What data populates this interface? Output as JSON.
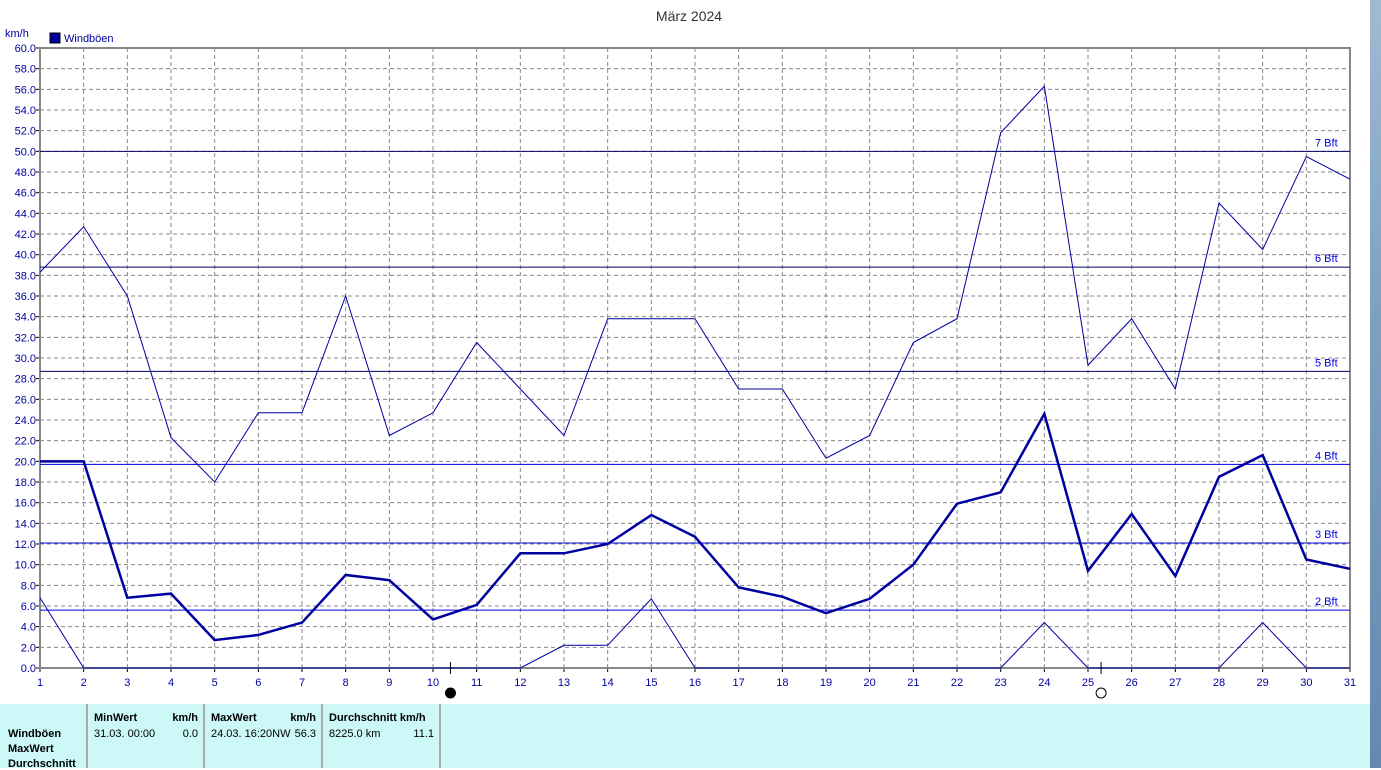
{
  "chart_data": {
    "type": "line",
    "title": "März 2024",
    "ylabel": "km/h",
    "ylim": [
      0,
      60
    ],
    "yticks": [
      "0.0",
      "2.0",
      "4.0",
      "6.0",
      "8.0",
      "10.0",
      "12.0",
      "14.0",
      "16.0",
      "18.0",
      "20.0",
      "22.0",
      "24.0",
      "26.0",
      "28.0",
      "30.0",
      "32.0",
      "34.0",
      "36.0",
      "38.0",
      "40.0",
      "42.0",
      "44.0",
      "46.0",
      "48.0",
      "50.0",
      "52.0",
      "54.0",
      "56.0",
      "58.0",
      "60.0"
    ],
    "x": [
      1,
      2,
      3,
      4,
      5,
      6,
      7,
      8,
      9,
      10,
      11,
      12,
      13,
      14,
      15,
      16,
      17,
      18,
      19,
      20,
      21,
      22,
      23,
      24,
      25,
      26,
      27,
      28,
      29,
      30,
      31
    ],
    "legend": "Windböen",
    "legend_color": "#0000a0",
    "grid": true,
    "series": [
      {
        "role": "max",
        "values": [
          38.3,
          42.7,
          36,
          22.3,
          18,
          24.7,
          24.7,
          36,
          22.5,
          24.7,
          31.5,
          27,
          22.5,
          33.8,
          33.8,
          33.8,
          27,
          27,
          20.3,
          22.5,
          31.5,
          33.8,
          51.8,
          56.3,
          29.3,
          33.8,
          27,
          45,
          40.5,
          49.5,
          47.3
        ]
      },
      {
        "role": "avg",
        "values": [
          20,
          20,
          6.8,
          7.2,
          2.7,
          3.2,
          4.4,
          9,
          8.5,
          4.7,
          6.1,
          11.1,
          11.1,
          12,
          14.8,
          12.7,
          7.8,
          6.9,
          5.3,
          6.7,
          10,
          15.9,
          17,
          24.6,
          9.4,
          14.9,
          8.9,
          18.5,
          20.6,
          10.5,
          9.6
        ]
      },
      {
        "role": "min",
        "values": [
          6.8,
          0,
          0,
          0,
          0,
          0,
          0,
          0,
          0,
          0,
          0,
          0,
          2.2,
          2.2,
          6.7,
          0,
          0,
          0,
          0,
          0,
          0,
          0,
          0,
          4.4,
          0,
          0,
          0,
          0,
          4.4,
          0,
          0
        ]
      }
    ],
    "beaufort": [
      {
        "label": "2 Bft",
        "value": 5.6
      },
      {
        "label": "3 Bft",
        "value": 12.1
      },
      {
        "label": "4 Bft",
        "value": 19.7
      },
      {
        "label": "5 Bft",
        "value": 28.7
      },
      {
        "label": "6 Bft",
        "value": 38.8
      },
      {
        "label": "7 Bft",
        "value": 50
      }
    ],
    "moon_phases": [
      {
        "phase": "full-moon-filled",
        "day": 10.4
      },
      {
        "phase": "new-moon-open",
        "day": 25.3
      }
    ]
  },
  "table": {
    "row_labels": [
      "Windböen",
      "MaxWert",
      "Durchschnitt"
    ],
    "min": {
      "header": "MinWert",
      "unit": "km/h",
      "date": "31.03.  00:00",
      "value": "0.0"
    },
    "max": {
      "header": "MaxWert",
      "unit": "km/h",
      "date": "24.03.  16:20NW",
      "value": "56.3"
    },
    "avg": {
      "header": "Durchschnitt km/h",
      "distance": "8225.0 km",
      "value": "11.1"
    }
  }
}
